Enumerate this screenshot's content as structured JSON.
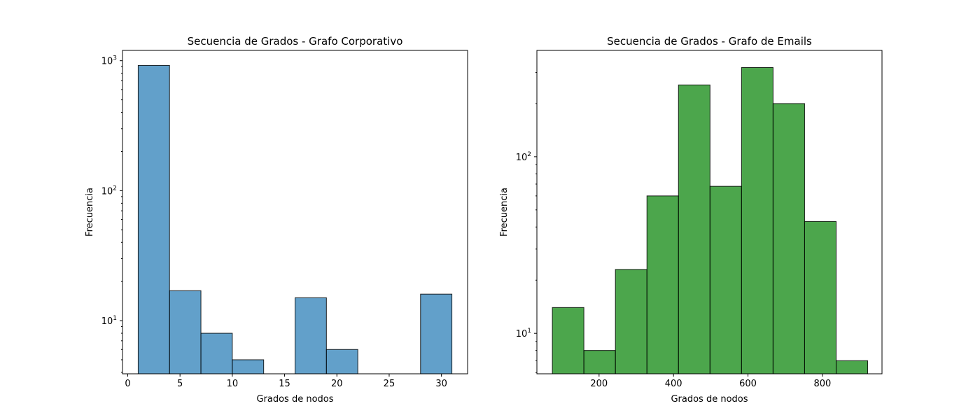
{
  "chart_data": [
    {
      "type": "bar",
      "title": "Secuencia de Grados - Grafo Corporativo",
      "xlabel": "Grados de nodos",
      "ylabel": "Frecuencia",
      "color": "#1f77b4",
      "bar_opacity": 0.7,
      "edge_color": "#000000",
      "yscale": "log",
      "xlim": [
        -0.5,
        32.5
      ],
      "ylim": [
        3.9,
        1200
      ],
      "xticks": [
        0,
        5,
        10,
        15,
        20,
        25,
        30
      ],
      "yticks": [
        {
          "base": "10",
          "exp": "1",
          "value": 10
        },
        {
          "base": "10",
          "exp": "2",
          "value": 100
        },
        {
          "base": "10",
          "exp": "3",
          "value": 1000
        }
      ],
      "bins": [
        {
          "start": 1,
          "end": 4,
          "count": 920
        },
        {
          "start": 4,
          "end": 7,
          "count": 17
        },
        {
          "start": 7,
          "end": 10,
          "count": 8
        },
        {
          "start": 10,
          "end": 13,
          "count": 5
        },
        {
          "start": 16,
          "end": 19,
          "count": 15
        },
        {
          "start": 19,
          "end": 22,
          "count": 6
        },
        {
          "start": 28,
          "end": 31,
          "count": 16
        }
      ]
    },
    {
      "type": "bar",
      "title": "Secuencia de Grados - Grafo de Emails",
      "xlabel": "Grados de nodos",
      "ylabel": "Frecuencia",
      "color": "#008000",
      "bar_opacity": 0.7,
      "edge_color": "#000000",
      "yscale": "log",
      "xlim": [
        33,
        960
      ],
      "ylim": [
        5.9,
        400
      ],
      "xticks": [
        200,
        400,
        600,
        800
      ],
      "yticks": [
        {
          "base": "10",
          "exp": "1",
          "value": 10
        },
        {
          "base": "10",
          "exp": "2",
          "value": 100
        }
      ],
      "bins": [
        {
          "start": 74.5,
          "end": 159.2,
          "count": 14
        },
        {
          "start": 159.2,
          "end": 243.9,
          "count": 8
        },
        {
          "start": 243.9,
          "end": 328.6,
          "count": 23
        },
        {
          "start": 328.6,
          "end": 413.3,
          "count": 60
        },
        {
          "start": 413.3,
          "end": 498.0,
          "count": 255
        },
        {
          "start": 498.0,
          "end": 582.7,
          "count": 68
        },
        {
          "start": 582.7,
          "end": 667.4,
          "count": 320
        },
        {
          "start": 667.4,
          "end": 752.1,
          "count": 200
        },
        {
          "start": 752.1,
          "end": 836.8,
          "count": 43
        },
        {
          "start": 836.8,
          "end": 921.5,
          "count": 7
        }
      ]
    }
  ]
}
